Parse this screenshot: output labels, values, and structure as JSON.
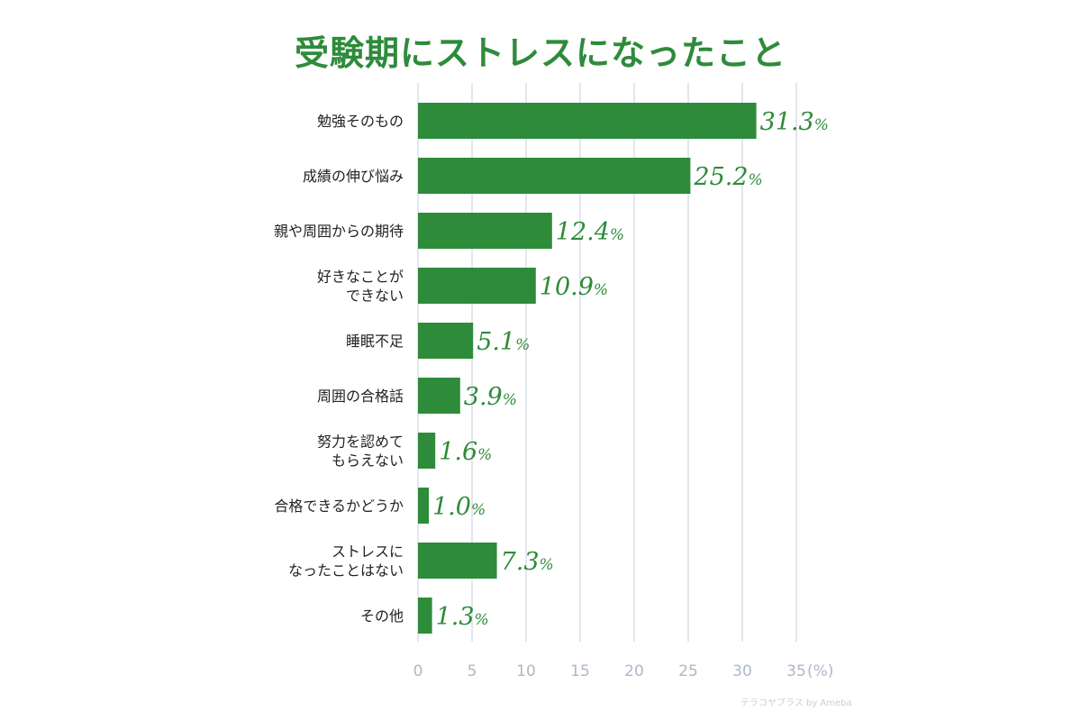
{
  "chart_data": {
    "type": "bar",
    "orientation": "horizontal",
    "title": "受験期にストレスになったこと",
    "categories": [
      "勉強そのもの",
      "成績の伸び悩み",
      "親や周囲からの期待",
      "好きなことが\nできない",
      "睡眠不足",
      "周囲の合格話",
      "努力を認めて\nもらえない",
      "合格できるかどうか",
      "ストレスに\nなったことはない",
      "その他"
    ],
    "values": [
      31.3,
      25.2,
      12.4,
      10.9,
      5.1,
      3.9,
      1.6,
      1.0,
      7.3,
      1.3
    ],
    "value_labels": [
      "31.3",
      "25.2",
      "12.4",
      "10.9",
      "5.1",
      "3.9",
      "1.6",
      "1.0",
      "7.3",
      "1.3"
    ],
    "value_suffix": "%",
    "xlim": [
      0,
      35
    ],
    "xticks": [
      "0",
      "5",
      "10",
      "15",
      "20",
      "25",
      "30",
      "35"
    ],
    "xunit": "(%)",
    "grid": "vertical",
    "bar_color": "#2e8b3a",
    "grid_color": "#c5cedc",
    "tick_color": "#aeb8c8"
  },
  "watermark": "テラコヤプラス by Ameba"
}
